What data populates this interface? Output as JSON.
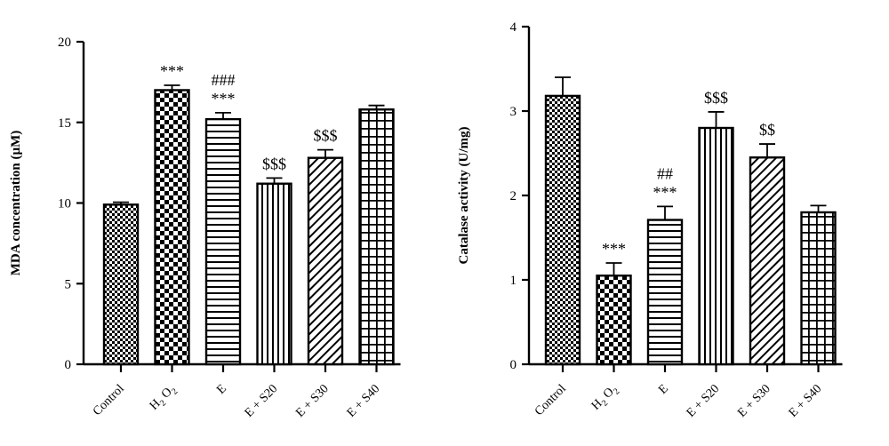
{
  "chart_data": [
    {
      "type": "bar",
      "ylabel": "MDA concentration (µM)",
      "xlabel": "",
      "ylim": [
        0,
        20
      ],
      "yticks": [
        0,
        5,
        10,
        15,
        20
      ],
      "categories": [
        "Control",
        "H2O2",
        "E",
        "E + S20",
        "E + S30",
        "E + S40"
      ],
      "category_labels": [
        {
          "text": "Control"
        },
        {
          "text": "H",
          "sub1": "2",
          "mid": "O",
          "sub2": "2"
        },
        {
          "text": "E"
        },
        {
          "text": "E + S20"
        },
        {
          "text": "E + S30"
        },
        {
          "text": "E + S40"
        }
      ],
      "values": [
        9.9,
        17.0,
        15.2,
        11.2,
        12.8,
        15.8
      ],
      "errors": [
        0.15,
        0.3,
        0.4,
        0.35,
        0.5,
        0.25
      ],
      "patterns": [
        "checker-small",
        "checker-large",
        "hlines",
        "vlines",
        "diagonal",
        "grid"
      ],
      "annotations": [
        [],
        [
          "***"
        ],
        [
          "###",
          "***"
        ],
        [
          "$$$"
        ],
        [
          "$$$"
        ],
        []
      ]
    },
    {
      "type": "bar",
      "ylabel": "Catalase activity (U/mg)",
      "xlabel": "",
      "ylim": [
        0,
        4
      ],
      "yticks": [
        0,
        1,
        2,
        3,
        4
      ],
      "categories": [
        "Control",
        "H2O2",
        "E",
        "E + S20",
        "E + S30",
        "E + S40"
      ],
      "category_labels": [
        {
          "text": "Control"
        },
        {
          "text": "H",
          "sub1": "2",
          "mid": "O",
          "sub2": "2"
        },
        {
          "text": "E"
        },
        {
          "text": "E + S20"
        },
        {
          "text": "E + S30"
        },
        {
          "text": "E + S40"
        }
      ],
      "values": [
        3.18,
        1.05,
        1.71,
        2.8,
        2.45,
        1.8
      ],
      "errors": [
        0.22,
        0.15,
        0.16,
        0.19,
        0.16,
        0.08
      ],
      "patterns": [
        "checker-small",
        "checker-large",
        "hlines",
        "vlines",
        "diagonal",
        "grid"
      ],
      "annotations": [
        [],
        [
          "***"
        ],
        [
          "##",
          "***"
        ],
        [
          "$$$"
        ],
        [
          "$$"
        ],
        []
      ]
    }
  ]
}
